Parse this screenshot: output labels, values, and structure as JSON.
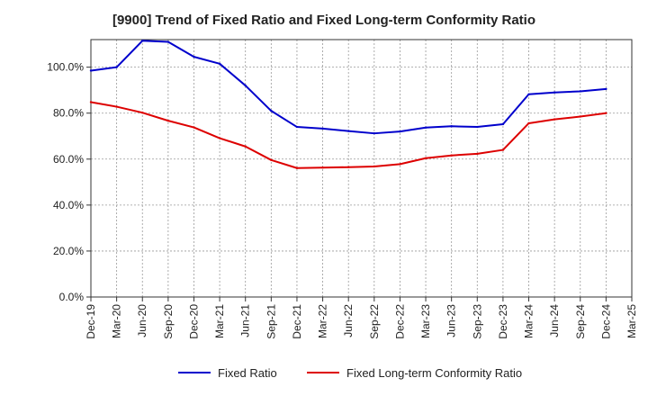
{
  "chart_data": {
    "type": "line",
    "title": "[9900]  Trend of Fixed Ratio and Fixed Long-term Conformity Ratio",
    "xlabel": "",
    "ylabel": "",
    "x": [
      "Dec-19",
      "Mar-20",
      "Jun-20",
      "Sep-20",
      "Dec-20",
      "Mar-21",
      "Jun-21",
      "Sep-21",
      "Dec-21",
      "Mar-22",
      "Jun-22",
      "Sep-22",
      "Dec-22",
      "Mar-23",
      "Jun-23",
      "Sep-23",
      "Dec-23",
      "Mar-24",
      "Jun-24",
      "Sep-24",
      "Dec-24",
      "Mar-25"
    ],
    "ylim": [
      0,
      112
    ],
    "yticks": [
      0,
      20,
      40,
      60,
      80,
      100
    ],
    "ytick_labels": [
      "0.0%",
      "20.0%",
      "40.0%",
      "60.0%",
      "80.0%",
      "100.0%"
    ],
    "grid": true,
    "legend_position": "bottom",
    "series": [
      {
        "name": "Fixed Ratio",
        "color": "#0000cc",
        "values": [
          98.5,
          100,
          111.5,
          111,
          104.5,
          101.5,
          92,
          81,
          74,
          73.3,
          72.2,
          71.2,
          72,
          73.7,
          74.3,
          74,
          75.2,
          88.2,
          89,
          89.5,
          90.5,
          null
        ]
      },
      {
        "name": "Fixed Long-term Conformity Ratio",
        "color": "#dd0000",
        "values": [
          84.8,
          82.8,
          80.2,
          76.7,
          73.8,
          69.1,
          65.5,
          59.6,
          56.1,
          56.3,
          56.5,
          56.8,
          57.8,
          60.4,
          61.6,
          62.3,
          64,
          75.6,
          77.3,
          78.5,
          80,
          null
        ]
      }
    ]
  }
}
